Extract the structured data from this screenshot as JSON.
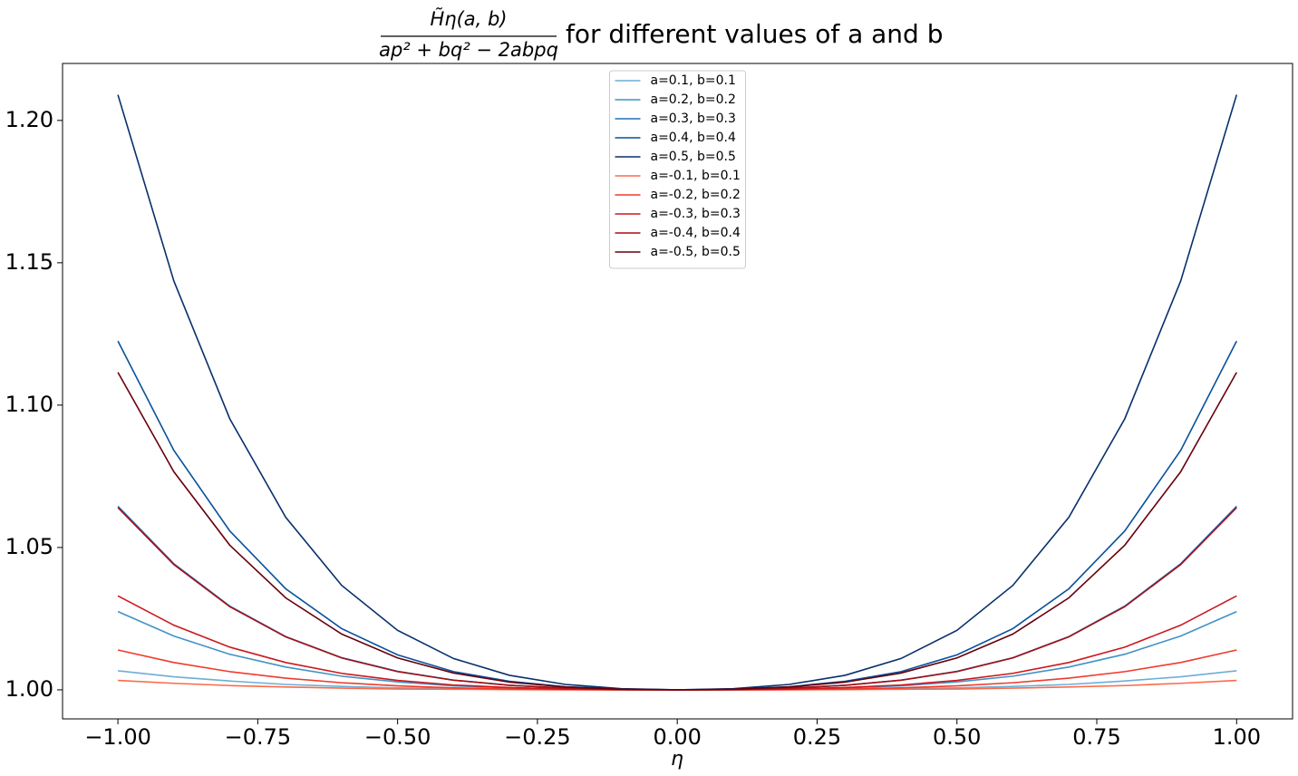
{
  "chart_data": {
    "type": "line",
    "title_numerator": "H̃η(a, b)",
    "title_denominator": "ap² + bq² − 2abpq",
    "title": "for different values of a and b",
    "xlabel": "η",
    "x": [
      -1.0,
      -0.9,
      -0.8,
      -0.7,
      -0.6,
      -0.5,
      -0.4,
      -0.3,
      -0.2,
      -0.1,
      0.0,
      0.1,
      0.2,
      0.3,
      0.4,
      0.5,
      0.6,
      0.7,
      0.8,
      0.9,
      1.0
    ],
    "series": [
      {
        "name": "a=0.1, b=0.1",
        "color": "#6baed6",
        "values": [
          1.0067,
          1.0046,
          1.0031,
          1.0019,
          1.0012,
          1.0007,
          1.0004,
          1.0002,
          1.0001,
          1.0,
          1.0,
          1.0,
          1.0001,
          1.0002,
          1.0004,
          1.0007,
          1.0012,
          1.0019,
          1.0031,
          1.0046,
          1.0067
        ]
      },
      {
        "name": "a=0.2, b=0.2",
        "color": "#4292c6",
        "values": [
          1.0275,
          1.0189,
          1.0125,
          1.008,
          1.0048,
          1.0028,
          1.0014,
          1.0007,
          1.0003,
          1.0001,
          1.0,
          1.0001,
          1.0003,
          1.0007,
          1.0014,
          1.0028,
          1.0048,
          1.008,
          1.0125,
          1.0189,
          1.0275
        ]
      },
      {
        "name": "a=0.3, b=0.3",
        "color": "#2171b5",
        "values": [
          1.0645,
          1.0443,
          1.0294,
          1.0187,
          1.0113,
          1.0065,
          1.0034,
          1.0016,
          1.0006,
          1.0001,
          1.0,
          1.0001,
          1.0006,
          1.0016,
          1.0034,
          1.0065,
          1.0113,
          1.0187,
          1.0294,
          1.0443,
          1.0645
        ]
      },
      {
        "name": "a=0.4, b=0.4",
        "color": "#08519c",
        "values": [
          1.1225,
          1.0841,
          1.0558,
          1.0355,
          1.0215,
          1.0123,
          1.0064,
          1.003,
          1.0011,
          1.0003,
          1.0,
          1.0003,
          1.0011,
          1.003,
          1.0064,
          1.0123,
          1.0215,
          1.0355,
          1.0558,
          1.0841,
          1.1225
        ]
      },
      {
        "name": "a=0.5, b=0.5",
        "color": "#08306b",
        "values": [
          1.209,
          1.1436,
          1.0952,
          1.0606,
          1.0367,
          1.0209,
          1.011,
          1.0051,
          1.0019,
          1.0004,
          1.0,
          1.0004,
          1.0019,
          1.0051,
          1.011,
          1.0209,
          1.0367,
          1.0606,
          1.0952,
          1.1436,
          1.209
        ]
      },
      {
        "name": "a=-0.1, b=0.1",
        "color": "#fb6a4a",
        "values": [
          1.0033,
          1.0023,
          1.0015,
          1.001,
          1.0006,
          1.0003,
          1.0002,
          1.0001,
          1.0,
          1.0,
          1.0,
          1.0,
          1.0,
          1.0001,
          1.0002,
          1.0003,
          1.0006,
          1.001,
          1.0015,
          1.0023,
          1.0033
        ]
      },
      {
        "name": "a=-0.2, b=0.2",
        "color": "#ef3b2c",
        "values": [
          1.014,
          1.0096,
          1.0064,
          1.0041,
          1.0025,
          1.0014,
          1.0007,
          1.0003,
          1.0001,
          1.0,
          1.0,
          1.0,
          1.0001,
          1.0003,
          1.0007,
          1.0014,
          1.0025,
          1.0041,
          1.0064,
          1.0096,
          1.014
        ]
      },
      {
        "name": "a=-0.3, b=0.3",
        "color": "#cb181d",
        "values": [
          1.033,
          1.0227,
          1.015,
          1.0096,
          1.0058,
          1.0033,
          1.0017,
          1.0008,
          1.0003,
          1.0001,
          1.0,
          1.0001,
          1.0003,
          1.0008,
          1.0017,
          1.0033,
          1.0058,
          1.0096,
          1.015,
          1.0227,
          1.033
        ]
      },
      {
        "name": "a=-0.4, b=0.4",
        "color": "#a50f15",
        "values": [
          1.064,
          1.044,
          1.0292,
          1.0186,
          1.0112,
          1.0064,
          1.0034,
          1.0016,
          1.0006,
          1.0001,
          1.0,
          1.0001,
          1.0006,
          1.0016,
          1.0034,
          1.0064,
          1.0112,
          1.0186,
          1.0292,
          1.044,
          1.064
        ]
      },
      {
        "name": "a=-0.5, b=0.5",
        "color": "#67000d",
        "values": [
          1.1115,
          1.0766,
          1.0508,
          1.0323,
          1.0196,
          1.0112,
          1.0059,
          1.0027,
          1.001,
          1.0002,
          1.0,
          1.0002,
          1.001,
          1.0027,
          1.0059,
          1.0112,
          1.0196,
          1.0323,
          1.0508,
          1.0766,
          1.1115
        ]
      }
    ],
    "xlim": [
      -1.099,
      1.1
    ],
    "ylim": [
      0.9898,
      1.22
    ],
    "xticks": [
      {
        "value": -1.0,
        "label": "−1.00"
      },
      {
        "value": -0.75,
        "label": "−0.75"
      },
      {
        "value": -0.5,
        "label": "−0.50"
      },
      {
        "value": -0.25,
        "label": "−0.25"
      },
      {
        "value": 0.0,
        "label": "0.00"
      },
      {
        "value": 0.25,
        "label": "0.25"
      },
      {
        "value": 0.5,
        "label": "0.50"
      },
      {
        "value": 0.75,
        "label": "0.75"
      },
      {
        "value": 1.0,
        "label": "1.00"
      }
    ],
    "yticks": [
      {
        "value": 1.0,
        "label": "1.00"
      },
      {
        "value": 1.05,
        "label": "1.05"
      },
      {
        "value": 1.1,
        "label": "1.10"
      },
      {
        "value": 1.15,
        "label": "1.15"
      },
      {
        "value": 1.2,
        "label": "1.20"
      }
    ],
    "legend": "upper center"
  }
}
